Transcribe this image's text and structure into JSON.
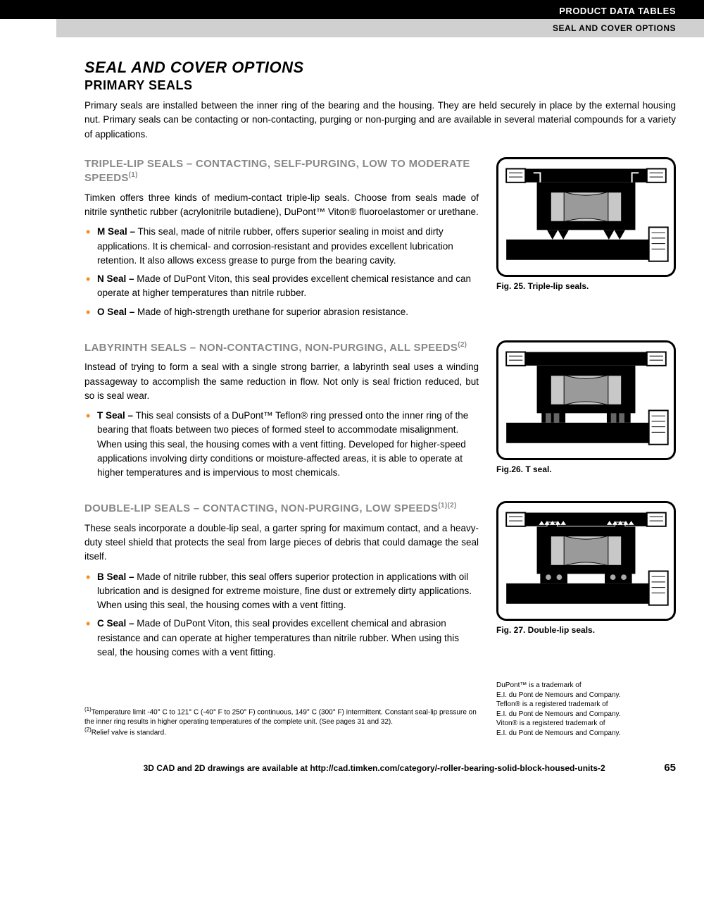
{
  "header": {
    "top": "PRODUCT DATA TABLES",
    "sub": "SEAL AND COVER OPTIONS"
  },
  "title": "SEAL AND COVER OPTIONS",
  "subtitle": "PRIMARY SEALS",
  "intro": "Primary seals are installed between the inner ring of the bearing and the housing. They are held securely in place by the external housing nut. Primary seals can be contacting or non-contacting, purging or non-purging and are available in several material compounds for a variety of applications.",
  "sections": [
    {
      "head": "TRIPLE-LIP SEALS – CONTACTING, SELF-PURGING, LOW TO MODERATE SPEEDS",
      "sup": "(1)",
      "body": "Timken offers three kinds of medium-contact triple-lip seals. Choose from seals made of nitrile synthetic rubber (acrylonitrile butadiene), DuPont™ Viton® fluoroelastomer or urethane.",
      "bullets": [
        "<b>M Seal –</b> This seal, made of nitrile rubber, offers superior sealing in moist and dirty applications. It is chemical- and corrosion-resistant and provides excellent lubrication retention. It also allows excess grease to purge from the bearing cavity.",
        "<b>N Seal –</b> Made of DuPont Viton, this seal provides excellent chemical resistance and can operate at higher temperatures than nitrile rubber.",
        "<b>O Seal –</b> Made of high-strength urethane for superior abrasion resistance."
      ],
      "caption": "Fig. 25. Triple-lip seals."
    },
    {
      "head": "LABYRINTH SEALS – NON-CONTACTING, NON-PURGING, ALL SPEEDS",
      "sup": "(2)",
      "body": "Instead of trying to form a seal with a single strong barrier, a labyrinth seal uses a winding passageway to accomplish the same reduction in flow. Not only is seal friction reduced, but so is seal wear.",
      "bullets": [
        "<b>T Seal –</b> This seal consists of a DuPont™ Teflon® ring pressed onto the inner ring of the bearing that floats between two pieces of formed steel to accommodate misalignment. When using this seal, the housing comes with a vent fitting. Developed for higher-speed applications involving dirty conditions or moisture-affected areas, it is able to operate at higher temperatures and is impervious to most chemicals."
      ],
      "caption": "Fig.26. T seal."
    },
    {
      "head": "DOUBLE-LIP SEALS – CONTACTING, NON-PURGING, LOW SPEEDS",
      "sup": "(1)(2)",
      "body": "These seals incorporate a double-lip seal, a garter spring for maximum contact, and a heavy-duty steel shield that protects the seal from large pieces of debris that could damage the seal itself.",
      "bullets": [
        "<b>B Seal –</b> Made of nitrile rubber, this seal offers superior protection in applications with oil lubrication and is designed for extreme moisture, fine dust or extremely dirty applications. When using this seal, the housing comes with a vent fitting.",
        "<b>C Seal –</b> Made of DuPont Viton, this seal provides excellent chemical and abrasion resistance and can operate at higher temperatures than nitrile rubber. When using this seal, the housing comes with a vent fitting."
      ],
      "caption": "Fig. 27. Double-lip seals."
    }
  ],
  "footnotes": [
    "<sup>(1)</sup>Temperature limit -40° C to 121° C (-40° F to 250° F) continuous, 149° C (300° F) intermittent. Constant seal-lip pressure on the inner ring results in higher operating temperatures of the complete unit. (See pages 31 and 32).",
    "<sup>(2)</sup>Relief valve is standard."
  ],
  "trademark": "DuPont™ is a trademark of<br>E.I. du Pont de Nemours and Company.<br>Teflon® is a registered trademark of<br>E.I. du Pont de Nemours and Company.<br>Viton® is a registered trademark of<br>E.I. du Pont de Nemours and Company.",
  "footer": "3D CAD and 2D drawings are available at http://cad.timken.com/category/-roller-bearing-solid-block-housed-units-2",
  "page_num": "65",
  "colors": {
    "accent": "#f68b1f",
    "head_gray": "#888888"
  }
}
